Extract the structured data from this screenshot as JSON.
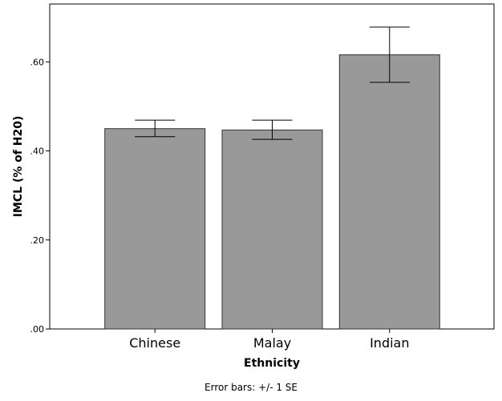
{
  "chart_data": {
    "type": "bar",
    "categories": [
      "Chinese",
      "Malay",
      "Indian"
    ],
    "values": [
      0.45,
      0.447,
      0.616
    ],
    "error_lower": [
      0.432,
      0.426,
      0.554
    ],
    "error_upper": [
      0.469,
      0.469,
      0.678
    ],
    "xlabel": "Ethnicity",
    "ylabel": "IMCL (% of H20)",
    "ylim": [
      0,
      0.73
    ],
    "yticks": [
      0,
      0.2,
      0.4,
      0.6
    ],
    "ytick_labels": [
      ".00",
      ".20",
      ".40",
      ".60"
    ],
    "footnote": "Error bars: +/- 1 SE",
    "grid": false,
    "colors": {
      "bar_fill": "#999999",
      "bar_stroke": "#333333",
      "error_bar": "#000000",
      "frame": "#000000"
    }
  }
}
